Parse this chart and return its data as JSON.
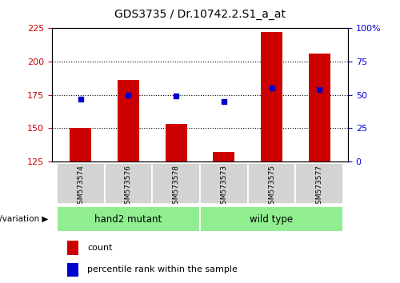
{
  "title": "GDS3735 / Dr.10742.2.S1_a_at",
  "samples": [
    "GSM573574",
    "GSM573576",
    "GSM573578",
    "GSM573573",
    "GSM573575",
    "GSM573577"
  ],
  "bar_values": [
    150,
    186,
    153,
    132,
    222,
    206
  ],
  "dot_values": [
    172,
    175,
    174,
    170,
    180,
    179
  ],
  "bar_color": "#cc0000",
  "dot_color": "#0000cc",
  "ylim_left": [
    125,
    225
  ],
  "yticks_left": [
    125,
    150,
    175,
    200,
    225
  ],
  "ylim_right": [
    0,
    100
  ],
  "yticks_right": [
    0,
    25,
    50,
    75,
    100
  ],
  "ytick_labels_right": [
    "0",
    "25",
    "50",
    "75",
    "100%"
  ],
  "gridlines_at": [
    150,
    175,
    200
  ],
  "group_labels": [
    "hand2 mutant",
    "wild type"
  ],
  "group_color": "#90ee90",
  "group_splits": [
    0,
    3,
    6
  ],
  "genotype_label": "genotype/variation",
  "legend_count_label": "count",
  "legend_pct_label": "percentile rank within the sample",
  "background_color": "#ffffff",
  "plot_bg_color": "#ffffff",
  "tick_color_left": "#cc0000",
  "tick_color_right": "#0000cc",
  "sample_label_bg": "#d3d3d3",
  "bar_width": 0.45
}
